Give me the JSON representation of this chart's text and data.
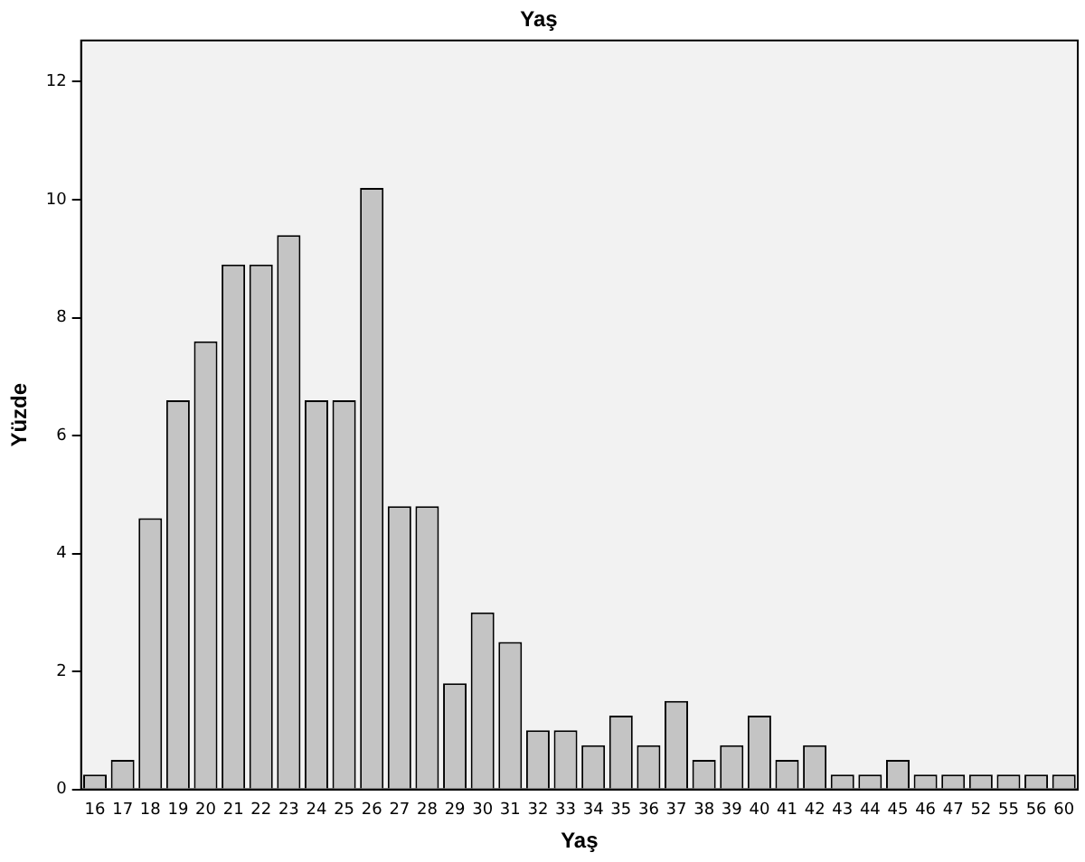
{
  "chart_data": {
    "type": "bar",
    "title": "Yaş",
    "xlabel": "Yaş",
    "ylabel": "Yüzde",
    "categories": [
      "16",
      "17",
      "18",
      "19",
      "20",
      "21",
      "22",
      "23",
      "24",
      "25",
      "26",
      "27",
      "28",
      "29",
      "30",
      "31",
      "32",
      "33",
      "34",
      "35",
      "36",
      "37",
      "38",
      "39",
      "40",
      "41",
      "42",
      "43",
      "44",
      "45",
      "46",
      "47",
      "52",
      "55",
      "56",
      "60"
    ],
    "values": [
      0.25,
      0.5,
      4.6,
      6.6,
      7.6,
      8.9,
      8.9,
      9.4,
      6.6,
      6.6,
      10.2,
      4.8,
      4.8,
      1.8,
      3.0,
      2.5,
      1.0,
      1.0,
      0.75,
      1.25,
      0.75,
      1.5,
      0.5,
      0.75,
      1.25,
      0.5,
      0.75,
      0.25,
      0.25,
      0.5,
      0.25,
      0.25,
      0.25,
      0.25,
      0.25,
      0.25
    ],
    "color": "#c4c4c4",
    "ylim": [
      0,
      12.7
    ],
    "yticks": [
      0,
      2,
      4,
      6,
      8,
      10,
      12
    ],
    "grid": false,
    "legend": false
  }
}
